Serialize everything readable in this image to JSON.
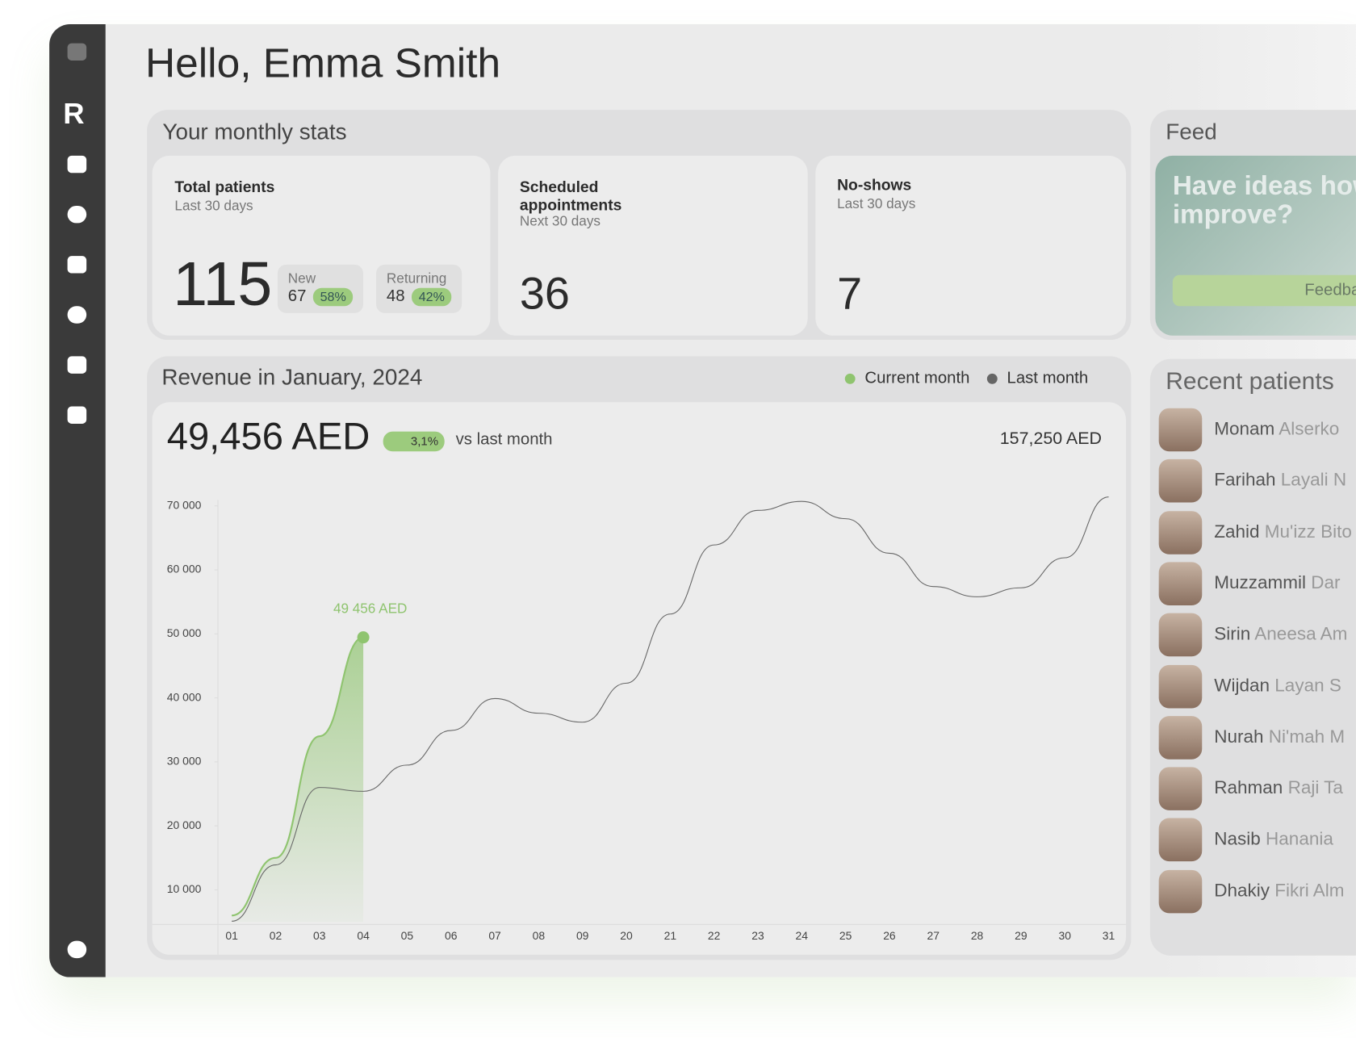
{
  "header": {
    "greeting": "Hello, Emma Smith"
  },
  "stats": {
    "title": "Your monthly stats",
    "total_patients": {
      "title": "Total patients",
      "period": "Last 30 days",
      "value": "115",
      "new": {
        "label": "New",
        "value": "67",
        "share": "58%"
      },
      "returning": {
        "label": "Returning",
        "value": "48",
        "share": "42%"
      }
    },
    "scheduled": {
      "title": "Scheduled appointments",
      "period": "Next 30 days",
      "value": "36"
    },
    "no_shows": {
      "title": "No-shows",
      "period": "Last 30 days",
      "value": "7"
    }
  },
  "feed": {
    "title": "Feed",
    "text": "Have ideas how to improve?",
    "button": "Feedback"
  },
  "revenue": {
    "total": "49,456 AED",
    "change": "3,1%",
    "change_note": "vs last month",
    "last_total": "157,250 AED",
    "chart_data": {
      "type": "line",
      "title": "Revenue in January, 2024",
      "categories": [
        "01",
        "02",
        "03",
        "04",
        "05",
        "06",
        "07",
        "08",
        "09",
        "20",
        "21",
        "22",
        "23",
        "24",
        "25",
        "26",
        "27",
        "28",
        "29",
        "30",
        "31"
      ],
      "series": [
        {
          "name": "Current month",
          "color": "#8fc46f",
          "values": [
            6000,
            15000,
            34000,
            49456,
            null,
            null,
            null,
            null,
            null,
            null,
            null,
            null,
            null,
            null,
            null,
            null,
            null,
            null,
            null,
            null,
            null
          ]
        },
        {
          "name": "Last month",
          "color": "#666666",
          "values": [
            5100,
            13900,
            26000,
            25400,
            29500,
            34900,
            39900,
            37600,
            36200,
            42300,
            53100,
            63900,
            69300,
            70700,
            68000,
            62600,
            57400,
            55800,
            57200,
            61900,
            71400
          ]
        }
      ],
      "annotation": "49 456 AED",
      "ylim": [
        5000,
        75000
      ],
      "yticks": [
        {
          "value": 10000,
          "label": "10 000"
        },
        {
          "value": 20000,
          "label": "20 000"
        },
        {
          "value": 30000,
          "label": "30 000"
        },
        {
          "value": 40000,
          "label": "40 000"
        },
        {
          "value": 50000,
          "label": "50 000"
        },
        {
          "value": 60000,
          "label": "60 000"
        },
        {
          "value": 70000,
          "label": "70 000"
        }
      ]
    }
  },
  "recent_patients": {
    "title": "Recent patients",
    "patients": [
      {
        "first": "Monam",
        "last": "Alserko"
      },
      {
        "first": "Farihah",
        "last": "Layali N"
      },
      {
        "first": "Zahid",
        "last": "Mu'izz Bito"
      },
      {
        "first": "Muzzammil",
        "last": "Dar"
      },
      {
        "first": "Sirin",
        "last": "Aneesa Am"
      },
      {
        "first": "Wijdan",
        "last": "Layan S"
      },
      {
        "first": "Nurah",
        "last": "Ni'mah M"
      },
      {
        "first": "Rahman",
        "last": "Raji Ta"
      },
      {
        "first": "Nasib",
        "last": "Hanania"
      },
      {
        "first": "Dhakiy",
        "last": "Fikri Alm"
      }
    ]
  }
}
